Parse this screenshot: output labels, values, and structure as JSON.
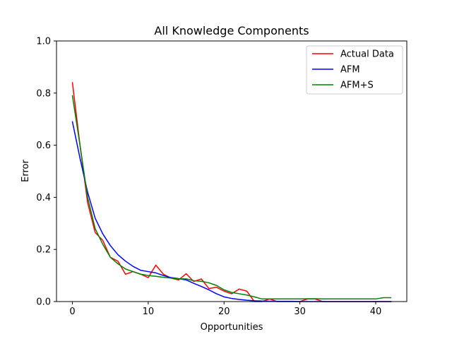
{
  "chart_data": {
    "type": "line",
    "title": "All Knowledge Components",
    "xlabel": "Opportunities",
    "ylabel": "Error",
    "xlim": [
      -2.1,
      44.1
    ],
    "ylim": [
      0,
      1.0
    ],
    "xticks": [
      0,
      10,
      20,
      30,
      40
    ],
    "yticks": [
      0.0,
      0.2,
      0.4,
      0.6,
      0.8,
      1.0
    ],
    "xtick_labels": [
      "0",
      "10",
      "20",
      "30",
      "40"
    ],
    "ytick_labels": [
      "0.0",
      "0.2",
      "0.4",
      "0.6",
      "0.8",
      "1.0"
    ],
    "legend_position": "top-right",
    "series": [
      {
        "name": "Actual Data",
        "color": "#ff0000",
        "x": [
          0,
          1,
          2,
          3,
          4,
          5,
          6,
          7,
          8,
          9,
          10,
          11,
          12,
          13,
          14,
          15,
          16,
          17,
          18,
          19,
          20,
          21,
          22,
          23,
          24,
          25,
          26,
          27,
          28,
          29,
          30,
          31,
          32,
          33,
          34,
          35,
          36,
          37,
          38,
          39,
          40,
          41,
          42
        ],
        "y": [
          0.84,
          0.6,
          0.38,
          0.265,
          0.235,
          0.17,
          0.155,
          0.105,
          0.115,
          0.105,
          0.092,
          0.14,
          0.105,
          0.09,
          0.083,
          0.107,
          0.077,
          0.087,
          0.05,
          0.055,
          0.04,
          0.03,
          0.048,
          0.04,
          0.0,
          0.0,
          0.01,
          0.0,
          0.0,
          0.0,
          0.0,
          0.01,
          0.01,
          0.0,
          0.0,
          0.0,
          0.0,
          0.0,
          0.0,
          0.0,
          0.0,
          0.0,
          0.0
        ]
      },
      {
        "name": "AFM",
        "color": "#0000ff",
        "x": [
          0,
          1,
          2,
          3,
          4,
          5,
          6,
          7,
          8,
          9,
          10,
          11,
          12,
          13,
          14,
          15,
          16,
          17,
          18,
          19,
          20,
          21,
          22,
          23,
          24,
          25,
          26,
          27,
          28,
          29,
          30,
          31,
          32,
          33,
          34,
          35,
          36,
          37,
          38,
          39,
          40,
          41,
          42
        ],
        "y": [
          0.69,
          0.55,
          0.42,
          0.32,
          0.26,
          0.215,
          0.18,
          0.155,
          0.135,
          0.12,
          0.115,
          0.11,
          0.1,
          0.092,
          0.088,
          0.083,
          0.07,
          0.058,
          0.045,
          0.03,
          0.018,
          0.012,
          0.008,
          0.005,
          0.003,
          0.002,
          0.001,
          0.001,
          0.001,
          0.001,
          0.0,
          0.0,
          0.0,
          0.0,
          0.0,
          0.0,
          0.0,
          0.0,
          0.0,
          0.0,
          0.0,
          0.0,
          0.0
        ]
      },
      {
        "name": "AFM+S",
        "color": "#008000",
        "x": [
          0,
          1,
          2,
          3,
          4,
          5,
          6,
          7,
          8,
          9,
          10,
          11,
          12,
          13,
          14,
          15,
          16,
          17,
          18,
          19,
          20,
          21,
          22,
          23,
          24,
          25,
          26,
          27,
          28,
          29,
          30,
          31,
          32,
          33,
          34,
          35,
          36,
          37,
          38,
          39,
          40,
          41,
          42
        ],
        "y": [
          0.79,
          0.6,
          0.4,
          0.28,
          0.22,
          0.17,
          0.145,
          0.125,
          0.115,
          0.105,
          0.1,
          0.097,
          0.093,
          0.09,
          0.087,
          0.087,
          0.08,
          0.078,
          0.072,
          0.062,
          0.045,
          0.035,
          0.03,
          0.025,
          0.018,
          0.01,
          0.01,
          0.01,
          0.01,
          0.01,
          0.01,
          0.011,
          0.011,
          0.01,
          0.01,
          0.01,
          0.01,
          0.01,
          0.01,
          0.01,
          0.01,
          0.015,
          0.015
        ]
      }
    ]
  }
}
